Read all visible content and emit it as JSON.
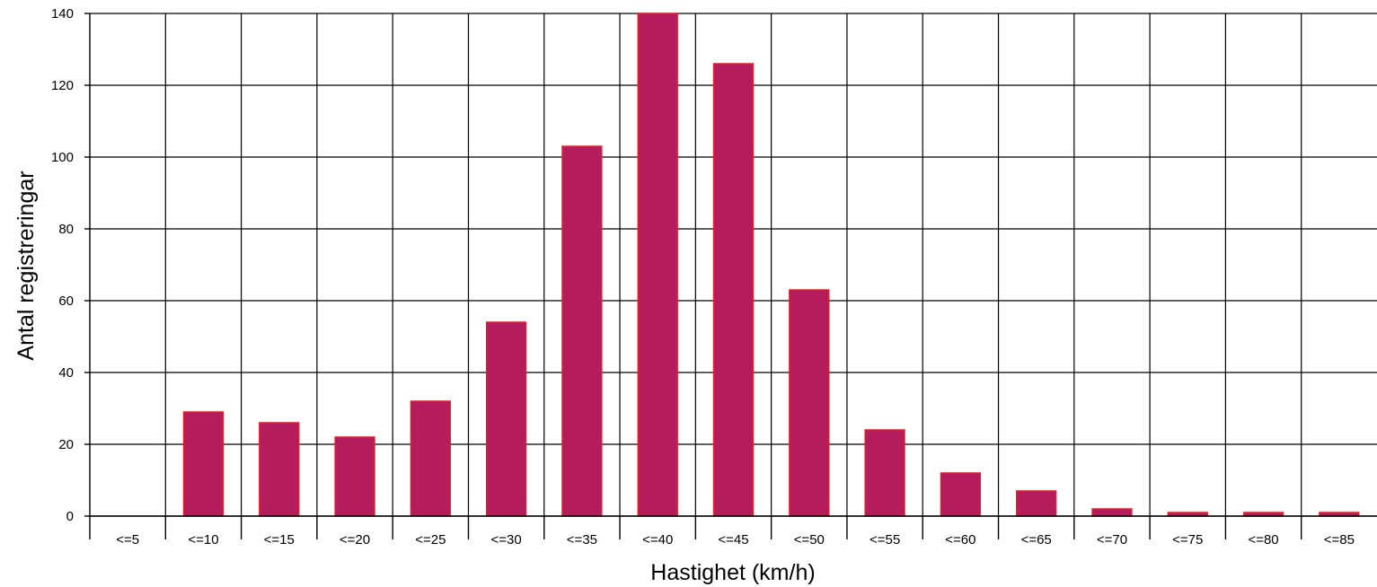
{
  "chart_data": {
    "type": "bar",
    "categories": [
      "<=5",
      "<=10",
      "<=15",
      "<=20",
      "<=25",
      "<=30",
      "<=35",
      "<=40",
      "<=45",
      "<=50",
      "<=55",
      "<=60",
      "<=65",
      "<=70",
      "<=75",
      "<=80",
      "<=85"
    ],
    "values": [
      0,
      29,
      26,
      22,
      32,
      54,
      103,
      140,
      126,
      63,
      24,
      12,
      7,
      2,
      1,
      1,
      1
    ],
    "xlabel": "Hastighet (km/h)",
    "ylabel": "Antal registreringar",
    "ylim": [
      0,
      140
    ],
    "yticks": [
      0,
      20,
      40,
      60,
      80,
      100,
      120,
      140
    ],
    "grid": true,
    "legend": "none",
    "colors": {
      "bar_fill": "#b51c5c",
      "bar_edge": "#e0202a",
      "grid": "#000000"
    }
  }
}
